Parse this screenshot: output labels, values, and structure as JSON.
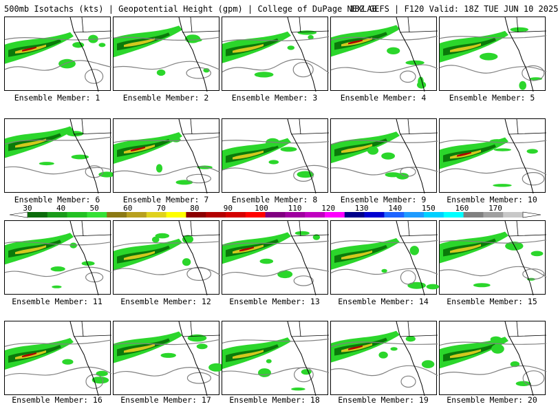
{
  "header": {
    "title_left": "500mb Isotachs (kts) | Geopotential Height (gpm) | College of DuPage NEXLAB",
    "title_right": "18Z GEFS | F120 Valid: 18Z TUE JUN 10 2025"
  },
  "members": [
    {
      "label": "Ensemble Member: 1"
    },
    {
      "label": "Ensemble Member: 2"
    },
    {
      "label": "Ensemble Member: 3"
    },
    {
      "label": "Ensemble Member: 4"
    },
    {
      "label": "Ensemble Member: 5"
    },
    {
      "label": "Ensemble Member: 6"
    },
    {
      "label": "Ensemble Member: 7"
    },
    {
      "label": "Ensemble Member: 8"
    },
    {
      "label": "Ensemble Member: 9"
    },
    {
      "label": "Ensemble Member: 10"
    },
    {
      "label": "Ensemble Member: 11"
    },
    {
      "label": "Ensemble Member: 12"
    },
    {
      "label": "Ensemble Member: 13"
    },
    {
      "label": "Ensemble Member: 14"
    },
    {
      "label": "Ensemble Member: 15"
    },
    {
      "label": "Ensemble Member: 16"
    },
    {
      "label": "Ensemble Member: 17"
    },
    {
      "label": "Ensemble Member: 18"
    },
    {
      "label": "Ensemble Member: 19"
    },
    {
      "label": "Ensemble Member: 20"
    }
  ],
  "colorbar": {
    "labels": [
      "30",
      "40",
      "50",
      "60",
      "70",
      "80",
      "90",
      "100",
      "110",
      "120",
      "130",
      "140",
      "150",
      "160",
      "170"
    ],
    "colors": [
      "#0b6b0b",
      "#1a9b1a",
      "#22c022",
      "#35e035",
      "#8c7a14",
      "#b8a01e",
      "#e0d21e",
      "#ffff00",
      "#8b0000",
      "#b30000",
      "#d40000",
      "#ff0000",
      "#800080",
      "#a000a0",
      "#c000c0",
      "#ff00ff",
      "#00008b",
      "#0000d0",
      "#1e64ff",
      "#1e9bff",
      "#00d0ff",
      "#00ffff",
      "#808080",
      "#a0a0a0",
      "#c8c8c8"
    ]
  },
  "map_colors": {
    "wind_dark_green": "#0a7a0a",
    "wind_green": "#2bd62b",
    "wind_yellow": "#d2c81e",
    "wind_red": "#b00000",
    "height_contour": "#808080",
    "borders": "#000000"
  }
}
